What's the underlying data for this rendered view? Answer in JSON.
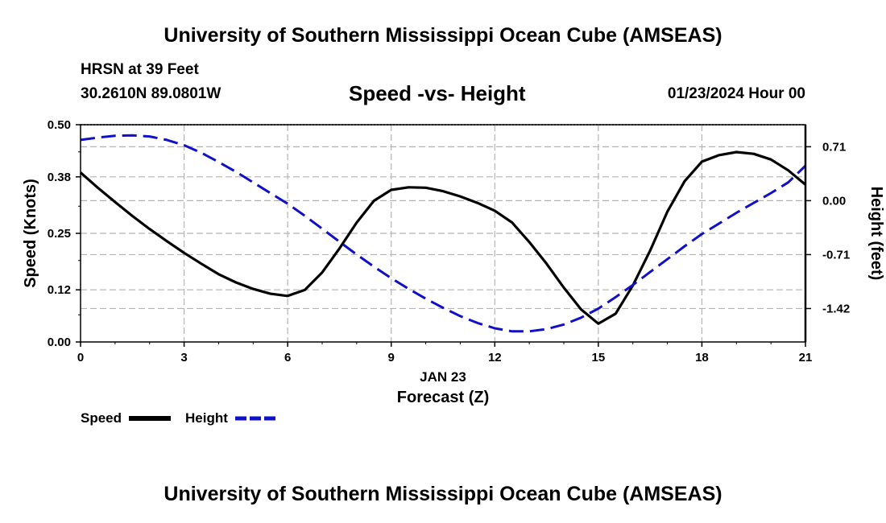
{
  "header": {
    "title": "University of Southern Mississippi Ocean Cube (AMSEAS)",
    "station": "HRSN at 39 Feet",
    "coordinates": "30.2610N  89.0801W",
    "subtitle": "Speed -vs- Height",
    "datetime": "01/23/2024 Hour 00"
  },
  "footer": {
    "title": "University of Southern Mississippi Ocean Cube (AMSEAS)"
  },
  "chart_data": {
    "type": "line",
    "title": "Speed -vs- Height",
    "xlabel_date": "JAN 23",
    "xlabel": "Forecast (Z)",
    "ylabel": "Speed (Knots)",
    "y2label": "Height (feet)",
    "xlim": [
      0,
      21
    ],
    "ylim": [
      0,
      0.5
    ],
    "y2lim": [
      -1.86,
      1.0
    ],
    "xticks": [
      "0",
      "3",
      "6",
      "9",
      "12",
      "15",
      "18",
      "21"
    ],
    "yticks": [
      "0.00",
      "0.12",
      "0.25",
      "0.38",
      "0.50"
    ],
    "y2ticks": [
      "0.71",
      "0.00",
      "-0.71",
      "-1.42"
    ],
    "grid": true,
    "legend_position": "bottom-left",
    "series": [
      {
        "name": "Speed",
        "axis": "left",
        "color": "#000000",
        "style": "solid",
        "x": [
          0,
          0.5,
          1,
          1.5,
          2,
          2.5,
          3,
          3.5,
          4,
          4.5,
          5,
          5.5,
          6,
          6.5,
          7,
          7.5,
          8,
          8.5,
          9,
          9.5,
          10,
          10.5,
          11,
          11.5,
          12,
          12.5,
          13,
          13.5,
          14,
          14.5,
          15,
          15.5,
          16,
          16.5,
          17,
          17.5,
          18,
          18.5,
          19,
          19.5,
          20,
          20.5,
          21
        ],
        "values": [
          0.39,
          0.355,
          0.322,
          0.29,
          0.26,
          0.232,
          0.205,
          0.18,
          0.156,
          0.137,
          0.122,
          0.111,
          0.106,
          0.12,
          0.16,
          0.215,
          0.275,
          0.325,
          0.35,
          0.356,
          0.355,
          0.347,
          0.335,
          0.32,
          0.302,
          0.275,
          0.23,
          0.18,
          0.125,
          0.075,
          0.042,
          0.065,
          0.13,
          0.21,
          0.3,
          0.37,
          0.415,
          0.43,
          0.437,
          0.433,
          0.42,
          0.395,
          0.362
        ]
      },
      {
        "name": "Height",
        "axis": "right",
        "color": "#1010c8",
        "style": "dashed",
        "x": [
          0,
          0.5,
          1,
          1.5,
          2,
          2.5,
          3,
          3.5,
          4,
          4.5,
          5,
          5.5,
          6,
          6.5,
          7,
          7.5,
          8,
          8.5,
          9,
          9.5,
          10,
          10.5,
          11,
          11.5,
          12,
          12.5,
          13,
          13.5,
          14,
          14.5,
          15,
          15.5,
          16,
          16.5,
          17,
          17.5,
          18,
          18.5,
          19,
          19.5,
          20,
          20.5,
          21
        ],
        "values": [
          0.8,
          0.83,
          0.855,
          0.86,
          0.845,
          0.8,
          0.73,
          0.63,
          0.51,
          0.38,
          0.24,
          0.1,
          -0.04,
          -0.2,
          -0.37,
          -0.54,
          -0.71,
          -0.87,
          -1.02,
          -1.16,
          -1.29,
          -1.41,
          -1.52,
          -1.61,
          -1.68,
          -1.72,
          -1.72,
          -1.69,
          -1.63,
          -1.54,
          -1.42,
          -1.27,
          -1.11,
          -0.94,
          -0.77,
          -0.6,
          -0.44,
          -0.3,
          -0.16,
          -0.03,
          0.1,
          0.24,
          0.46
        ]
      }
    ]
  }
}
